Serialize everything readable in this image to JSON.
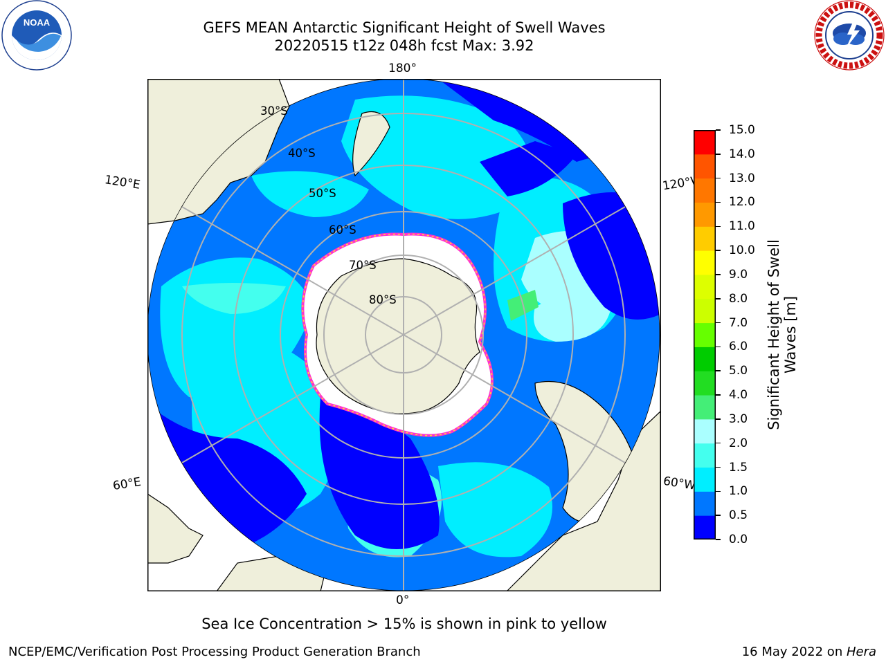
{
  "title": {
    "line1": "GEFS MEAN Antarctic Significant Height of Swell Waves",
    "line2": "20220515 t12z 048h fcst   Max: 3.92"
  },
  "logos": {
    "left": {
      "icon": "noaa-logo",
      "text": "NOAA"
    },
    "right": {
      "icon": "nws-logo",
      "text": "NATIONAL WEATHER SERVICE"
    }
  },
  "map": {
    "projection": "south-polar-stereographic",
    "longitude_labels": {
      "top": "180°",
      "bottom": "0°",
      "left_upper": "120°E",
      "left_lower": "60°E",
      "right_upper": "120°W",
      "right_lower": "60°W"
    },
    "latitude_labels": [
      "30°S",
      "40°S",
      "50°S",
      "60°S",
      "70°S",
      "80°S"
    ],
    "colors": {
      "land": "#efefdb",
      "ice": "#ffffff",
      "grid": "#b0b0b0",
      "ice_edge_pink": "#ff33cc",
      "ice_edge_yellow": "#ffe030"
    }
  },
  "colorbar": {
    "label": "Significant Height of Swell Waves [m]",
    "label_line1": "Significant Height of Swell",
    "label_line2": "Waves [m]",
    "ticks": [
      "0.0",
      "0.5",
      "1.0",
      "1.5",
      "2.0",
      "3.0",
      "4.0",
      "5.0",
      "6.0",
      "7.0",
      "8.0",
      "9.0",
      "10.0",
      "11.0",
      "12.0",
      "13.0",
      "14.0",
      "15.0"
    ],
    "colors": [
      "#0000ff",
      "#0077ff",
      "#00eeff",
      "#44ffee",
      "#aaffff",
      "#44ee77",
      "#22dd22",
      "#00cc00",
      "#66ff00",
      "#ccff00",
      "#ddff00",
      "#ffff00",
      "#ffcc00",
      "#ff9900",
      "#ff7700",
      "#ff5500",
      "#ff0000"
    ]
  },
  "footnote": "Sea Ice Concentration > 15% is shown in pink to yellow",
  "credits": {
    "left": "NCEP/EMC/Verification Post Processing Product Generation Branch",
    "right_prefix": "16 May 2022 on ",
    "right_host": "Hera"
  }
}
